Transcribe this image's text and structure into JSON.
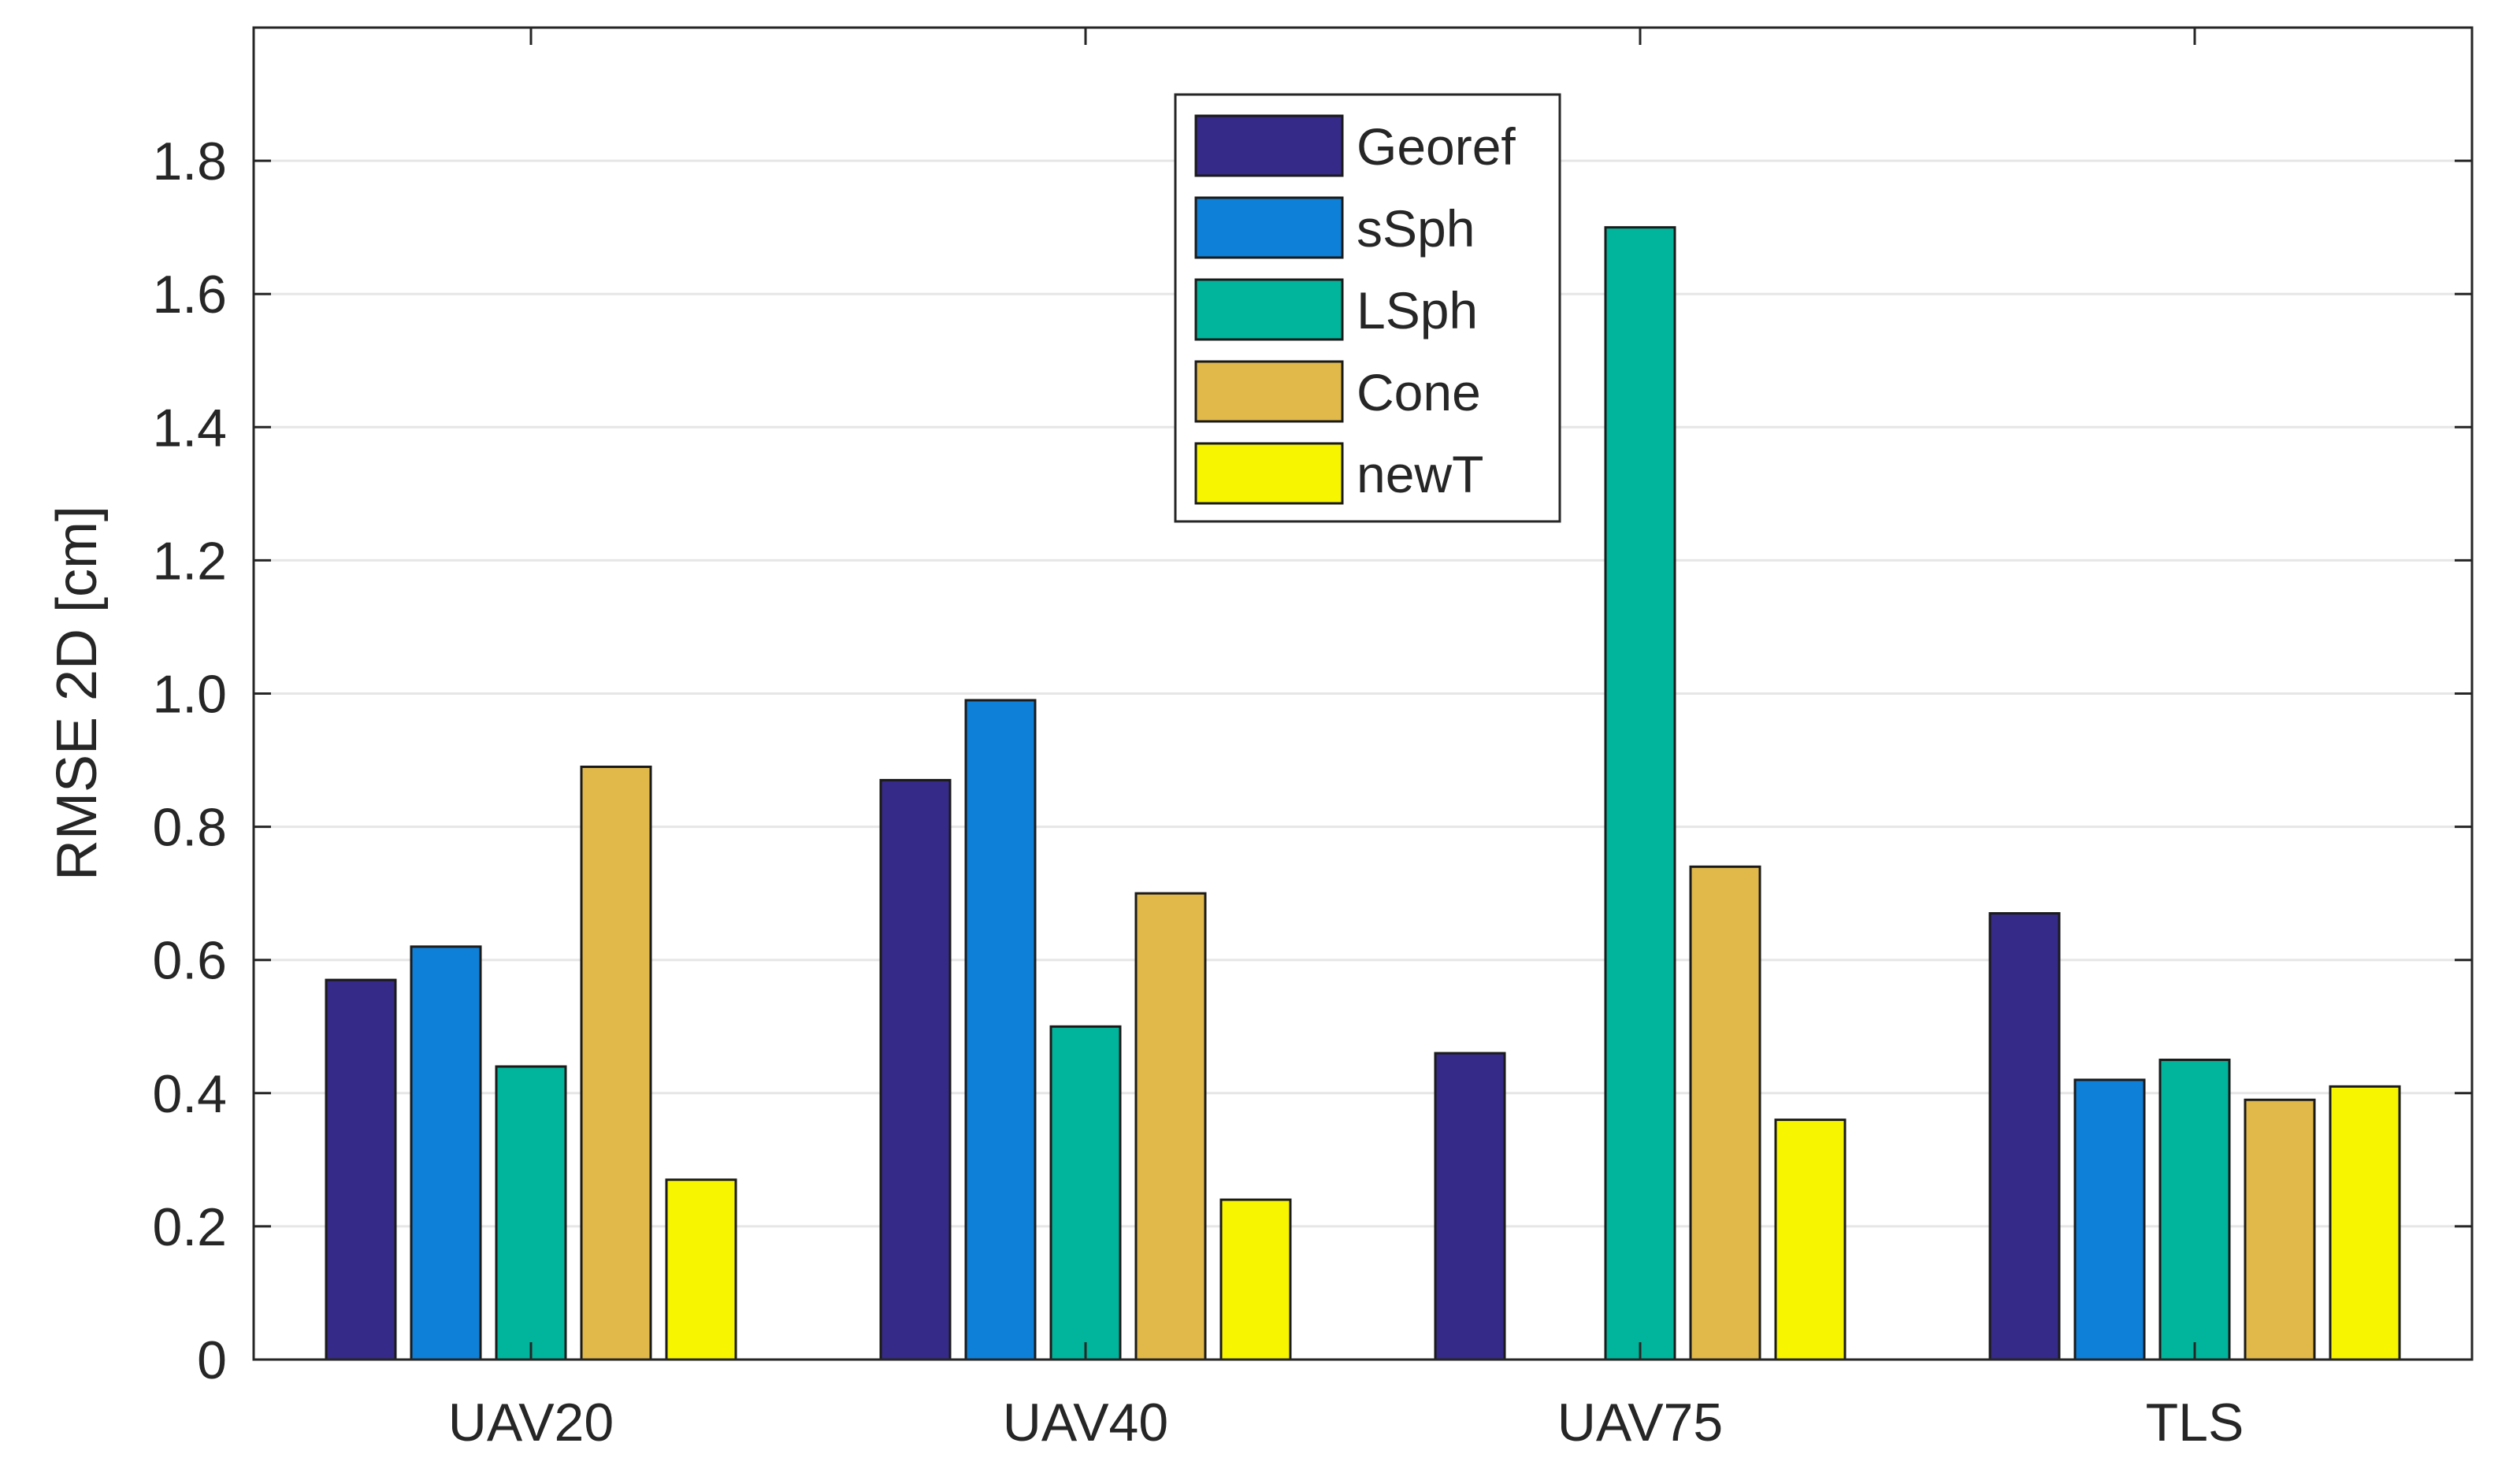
{
  "chart_data": {
    "type": "bar",
    "title": "",
    "xlabel": "",
    "ylabel": "RMSE 2D [cm]",
    "ylim": [
      0,
      2.0
    ],
    "yticks": [
      "0",
      "0.2",
      "0.4",
      "0.6",
      "0.8",
      "1.0",
      "1.2",
      "1.4",
      "1.6",
      "1.8"
    ],
    "ytick_values": [
      0,
      0.2,
      0.4,
      0.6,
      0.8,
      1.0,
      1.2,
      1.4,
      1.6,
      1.8
    ],
    "grid": true,
    "legend_position": "top-center",
    "categories": [
      "UAV20",
      "UAV40",
      "UAV75",
      "TLS"
    ],
    "series": [
      {
        "name": "Georef",
        "color": "#352a87",
        "values": [
          0.57,
          0.87,
          0.46,
          0.67
        ]
      },
      {
        "name": "sSph",
        "color": "#0f80d8",
        "values": [
          0.62,
          0.99,
          0.0,
          0.42
        ]
      },
      {
        "name": "LSph",
        "color": "#00b59b",
        "values": [
          0.44,
          0.5,
          1.7,
          0.45
        ]
      },
      {
        "name": "Cone",
        "color": "#e1b94a",
        "values": [
          0.89,
          0.7,
          0.74,
          0.39
        ]
      },
      {
        "name": "newT",
        "color": "#f8f500",
        "values": [
          0.27,
          0.24,
          0.36,
          0.41
        ]
      }
    ]
  }
}
